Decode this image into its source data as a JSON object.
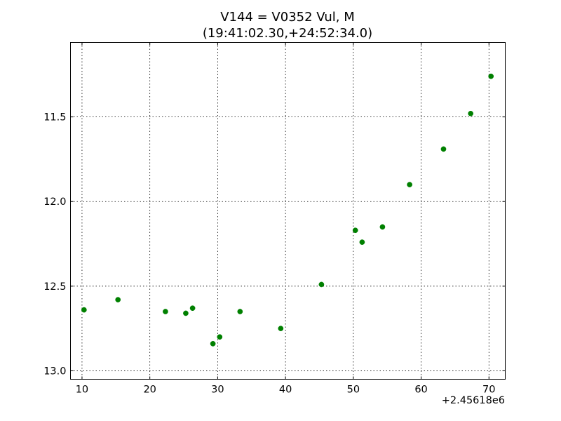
{
  "chart_data": {
    "type": "scatter",
    "title_line1": "V144 = V0352 Vul, M",
    "title_line2": "(19:41:02.30,+24:52:34.0)",
    "xlabel": "",
    "ylabel": "",
    "x_offset_label": "+2.45618e6",
    "xlim": [
      8.3,
      72.4
    ],
    "ylim": [
      13.05,
      11.06
    ],
    "y_inverted": true,
    "x_ticks": [
      10,
      20,
      30,
      40,
      50,
      60,
      70
    ],
    "x_tick_labels": [
      "10",
      "20",
      "30",
      "40",
      "50",
      "60",
      "70"
    ],
    "y_ticks": [
      11.5,
      12.0,
      12.5,
      13.0
    ],
    "y_tick_labels": [
      "11.5",
      "12.0",
      "12.5",
      "13.0"
    ],
    "grid": true,
    "marker_color": "#008000",
    "x": [
      10.3,
      15.3,
      22.3,
      25.3,
      26.3,
      29.3,
      30.3,
      33.3,
      39.3,
      45.3,
      50.3,
      51.3,
      54.3,
      58.3,
      63.3,
      67.3,
      70.3
    ],
    "y": [
      12.64,
      12.58,
      12.65,
      12.66,
      12.63,
      12.84,
      12.8,
      12.65,
      12.75,
      12.49,
      12.17,
      12.24,
      12.15,
      11.9,
      11.69,
      11.48,
      11.26
    ]
  }
}
